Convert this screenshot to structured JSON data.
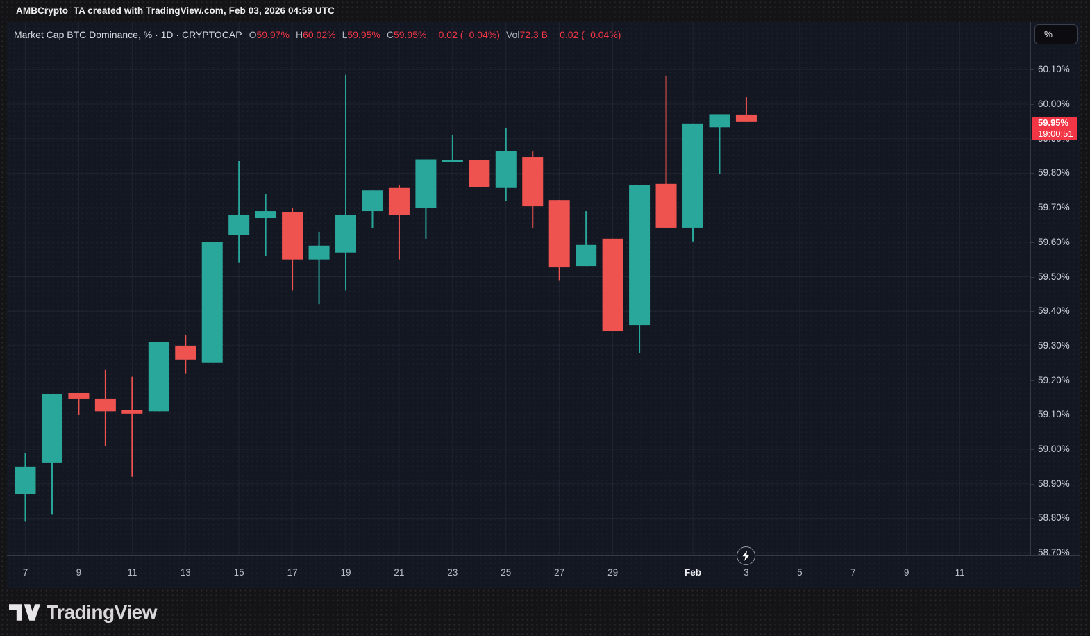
{
  "page": {
    "attribution": "AMBCrypto_TA created with TradingView.com, Feb 03, 2026 04:59 UTC"
  },
  "legend": {
    "symbol_title": "Market Cap BTC Dominance, % · 1D · CRYPTOCAP",
    "open_label": "O",
    "open_value": "59.97%",
    "high_label": "H",
    "high_value": "60.02%",
    "low_label": "L",
    "low_value": "59.95%",
    "close_label": "C",
    "close_value": "59.95%",
    "change": "−0.02 (−0.04%)",
    "volume_label": "Vol",
    "volume_value": "72.3 B",
    "volume_change": "−0.02 (−0.04%)"
  },
  "price_scale": {
    "unit_button": "%",
    "last_price": "59.95%",
    "countdown": "19:00:51"
  },
  "footer": {
    "brand": "TradingView"
  },
  "colors": {
    "up": "#2aa79b",
    "down": "#ef5350",
    "badge": "#f23645",
    "grid": "rgba(240,243,250,0.06)"
  },
  "chart_data": {
    "type": "candlestick",
    "title": "Market Cap BTC Dominance, % · 1D · CRYPTOCAP",
    "ylabel": "%",
    "ylim": [
      58.6,
      60.17
    ],
    "grid": true,
    "y_axis": {
      "ticks": [
        {
          "value": 60.1,
          "label": "60.10%"
        },
        {
          "value": 60.0,
          "label": "60.00%"
        },
        {
          "value": 59.9,
          "label": "59.90%"
        },
        {
          "value": 59.8,
          "label": "59.80%"
        },
        {
          "value": 59.7,
          "label": "59.70%"
        },
        {
          "value": 59.6,
          "label": "59.60%"
        },
        {
          "value": 59.5,
          "label": "59.50%"
        },
        {
          "value": 59.4,
          "label": "59.40%"
        },
        {
          "value": 59.3,
          "label": "59.30%"
        },
        {
          "value": 59.2,
          "label": "59.20%"
        },
        {
          "value": 59.1,
          "label": "59.10%"
        },
        {
          "value": 59.0,
          "label": "59.00%"
        },
        {
          "value": 58.9,
          "label": "58.90%"
        },
        {
          "value": 58.8,
          "label": "58.80%"
        },
        {
          "value": 58.7,
          "label": "58.70%"
        }
      ]
    },
    "x_axis": {
      "ticks": [
        {
          "index": 0,
          "label": "7"
        },
        {
          "index": 2,
          "label": "9"
        },
        {
          "index": 4,
          "label": "11"
        },
        {
          "index": 6,
          "label": "13"
        },
        {
          "index": 8,
          "label": "15"
        },
        {
          "index": 10,
          "label": "17"
        },
        {
          "index": 12,
          "label": "19"
        },
        {
          "index": 14,
          "label": "21"
        },
        {
          "index": 16,
          "label": "23"
        },
        {
          "index": 18,
          "label": "25"
        },
        {
          "index": 20,
          "label": "27"
        },
        {
          "index": 22,
          "label": "29"
        },
        {
          "index": 25,
          "label": "Feb",
          "emphasis": true
        },
        {
          "index": 27,
          "label": "3"
        },
        {
          "index": 29,
          "label": "5"
        },
        {
          "index": 31,
          "label": "7"
        },
        {
          "index": 33,
          "label": "9"
        },
        {
          "index": 35,
          "label": "11"
        }
      ]
    },
    "last_price": 59.95,
    "candles": [
      {
        "date": "Jan 7",
        "o": 58.87,
        "h": 58.99,
        "l": 58.79,
        "c": 58.95
      },
      {
        "date": "Jan 8",
        "o": 58.96,
        "h": 59.16,
        "l": 58.81,
        "c": 59.16
      },
      {
        "date": "Jan 9",
        "o": 59.163,
        "h": 59.163,
        "l": 59.1,
        "c": 59.147
      },
      {
        "date": "Jan 10",
        "o": 59.147,
        "h": 59.23,
        "l": 59.01,
        "c": 59.11
      },
      {
        "date": "Jan 11",
        "o": 59.113,
        "h": 59.21,
        "l": 58.92,
        "c": 59.103
      },
      {
        "date": "Jan 12",
        "o": 59.11,
        "h": 59.31,
        "l": 59.11,
        "c": 59.31
      },
      {
        "date": "Jan 13",
        "o": 59.3,
        "h": 59.33,
        "l": 59.22,
        "c": 59.26
      },
      {
        "date": "Jan 14",
        "o": 59.25,
        "h": 59.6,
        "l": 59.25,
        "c": 59.6
      },
      {
        "date": "Jan 15",
        "o": 59.62,
        "h": 59.835,
        "l": 59.54,
        "c": 59.68
      },
      {
        "date": "Jan 16",
        "o": 59.67,
        "h": 59.74,
        "l": 59.56,
        "c": 59.69
      },
      {
        "date": "Jan 17",
        "o": 59.688,
        "h": 59.7,
        "l": 59.46,
        "c": 59.55
      },
      {
        "date": "Jan 18",
        "o": 59.55,
        "h": 59.63,
        "l": 59.42,
        "c": 59.59
      },
      {
        "date": "Jan 19",
        "o": 59.57,
        "h": 60.085,
        "l": 59.46,
        "c": 59.68
      },
      {
        "date": "Jan 20",
        "o": 59.69,
        "h": 59.75,
        "l": 59.64,
        "c": 59.75
      },
      {
        "date": "Jan 21",
        "o": 59.757,
        "h": 59.765,
        "l": 59.55,
        "c": 59.68
      },
      {
        "date": "Jan 22",
        "o": 59.7,
        "h": 59.84,
        "l": 59.61,
        "c": 59.84
      },
      {
        "date": "Jan 23",
        "o": 59.831,
        "h": 59.91,
        "l": 59.831,
        "c": 59.839
      },
      {
        "date": "Jan 24",
        "o": 59.837,
        "h": 59.837,
        "l": 59.759,
        "c": 59.759
      },
      {
        "date": "Jan 25",
        "o": 59.757,
        "h": 59.93,
        "l": 59.72,
        "c": 59.865
      },
      {
        "date": "Jan 26",
        "o": 59.847,
        "h": 59.863,
        "l": 59.64,
        "c": 59.704
      },
      {
        "date": "Jan 27",
        "o": 59.722,
        "h": 59.722,
        "l": 59.49,
        "c": 59.527
      },
      {
        "date": "Jan 28",
        "o": 59.531,
        "h": 59.69,
        "l": 59.531,
        "c": 59.592
      },
      {
        "date": "Jan 29",
        "o": 59.61,
        "h": 59.61,
        "l": 59.342,
        "c": 59.342
      },
      {
        "date": "Jan 30",
        "o": 59.36,
        "h": 59.765,
        "l": 59.278,
        "c": 59.765
      },
      {
        "date": "Jan 31",
        "o": 59.769,
        "h": 60.083,
        "l": 59.642,
        "c": 59.642
      },
      {
        "date": "Feb 1",
        "o": 59.642,
        "h": 59.944,
        "l": 59.602,
        "c": 59.944
      },
      {
        "date": "Feb 2",
        "o": 59.933,
        "h": 59.971,
        "l": 59.797,
        "c": 59.971
      },
      {
        "date": "Feb 3",
        "o": 59.97,
        "h": 60.02,
        "l": 59.95,
        "c": 59.95
      }
    ]
  }
}
